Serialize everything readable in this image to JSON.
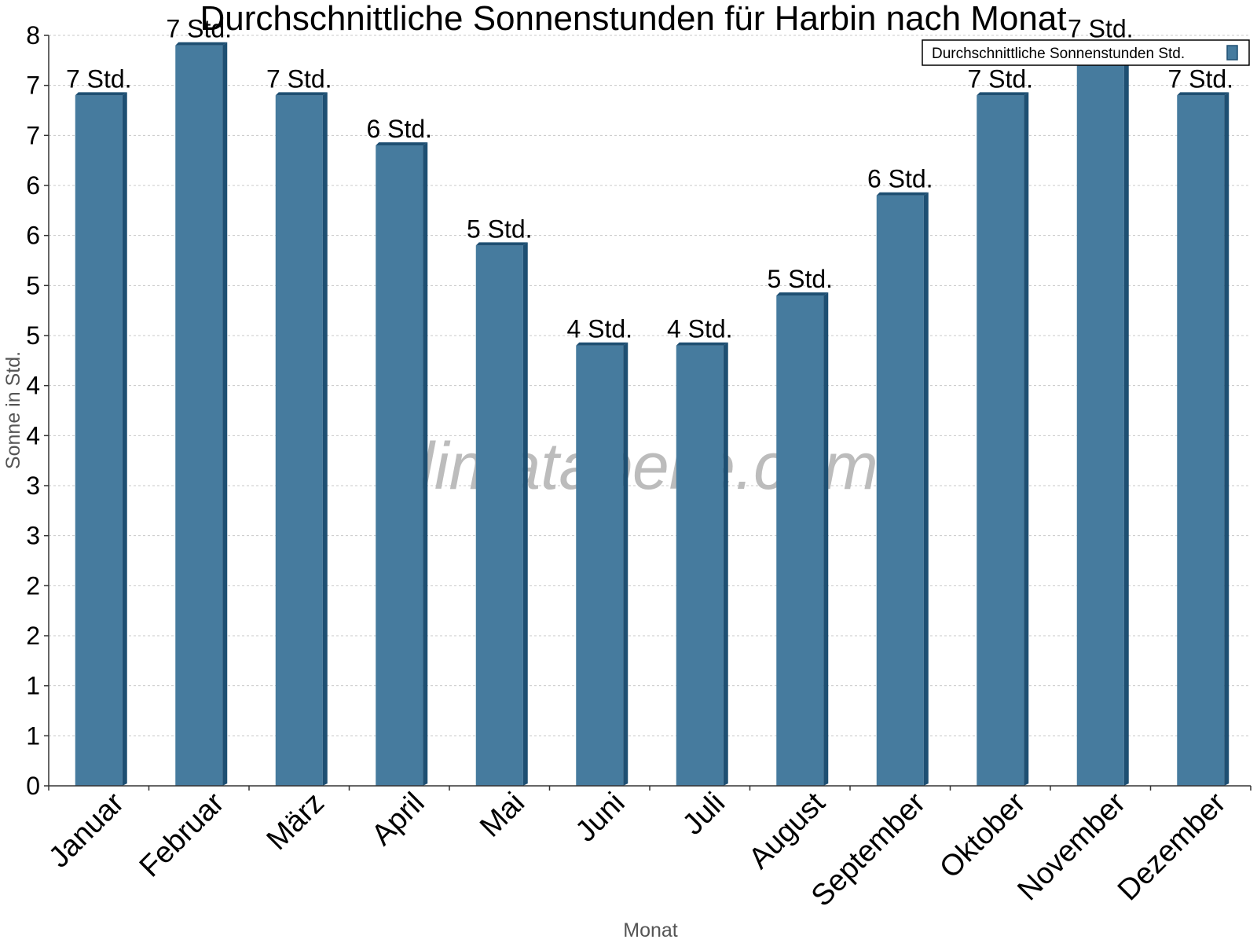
{
  "chart_data": {
    "type": "bar",
    "title": "Durchschnittliche Sonnenstunden für Harbin nach Monat",
    "xlabel": "Monat",
    "ylabel": "Sonne in Std.",
    "categories": [
      "Januar",
      "Februar",
      "März",
      "April",
      "Mai",
      "Juni",
      "Juli",
      "August",
      "September",
      "Oktober",
      "November",
      "Dezember"
    ],
    "series": [
      {
        "name": "Durchschnittliche Sonnenstunden Std.",
        "values": [
          6.9,
          7.4,
          6.9,
          6.4,
          5.4,
          4.4,
          4.4,
          4.9,
          5.9,
          6.9,
          7.4,
          6.9
        ],
        "labels": [
          "7 Std.",
          "7 Std.",
          "7 Std.",
          "6 Std.",
          "5 Std.",
          "4 Std.",
          "4 Std.",
          "5 Std.",
          "6 Std.",
          "7 Std.",
          "7 Std.",
          "7 Std."
        ]
      }
    ],
    "ylim": [
      0,
      7.5
    ],
    "ytick_values": [
      0,
      0.5,
      1,
      1.5,
      2,
      2.5,
      3,
      3.5,
      4,
      4.5,
      5,
      5.5,
      6,
      6.5,
      7,
      7.5
    ],
    "ytick_labels": [
      "0",
      "1",
      "1",
      "2",
      "2",
      "3",
      "3",
      "4",
      "4",
      "5",
      "5",
      "6",
      "6",
      "7",
      "7",
      "8"
    ],
    "grid": true,
    "legend_position": "top-right",
    "watermark": "klimatabelle.com",
    "colors": {
      "bar": "#467b9e",
      "bar_side": "#1e4f72",
      "bar_top": "#1e4f72",
      "grid": "#c8c8c8",
      "axis": "#333333"
    }
  }
}
